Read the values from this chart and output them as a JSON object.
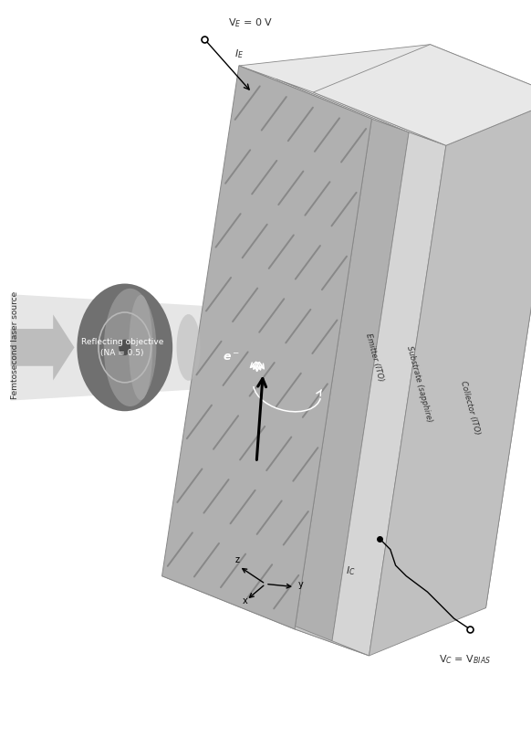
{
  "bg_color": "#ffffff",
  "fig_width": 5.82,
  "fig_height": 8.19,
  "laser_label": "Femtosecond laser source",
  "objective_label": "Reflecting objective\n(NA = 0.5)",
  "emitter_label": "Emitter (ITO)",
  "substrate_label": "Substrate (sapphire)",
  "collector_label": "Collector (ITO)",
  "VE_label": "V$_E$ = 0 V",
  "IE_label": "$I_E$",
  "VC_label": "V$_C$ = V$_{BIAS}$",
  "IC_label": "$I_C$",
  "e_label": "e$^-$",
  "xyz_x": "x",
  "xyz_y": "y",
  "xyz_z": "z",
  "light_gray": "#d8d8d8",
  "medium_gray": "#b8b8b8",
  "dark_gray": "#888888",
  "darker_gray": "#505050",
  "objective_outer": "#707070",
  "objective_mid": "#909090",
  "objective_inner": "#a0a0a0",
  "emitter_face": "#b0b0b0",
  "emitter_stripe": "#888888",
  "substrate_face": "#d5d5d5",
  "collector_face": "#c0c0c0",
  "top_face": "#e8e8e8",
  "right_face_light": "#d8d8d8",
  "right_face_dark": "#c0c0c0",
  "beam_gray": "#c8c8c8",
  "text_dark": "#303030",
  "text_white": "#ffffff"
}
